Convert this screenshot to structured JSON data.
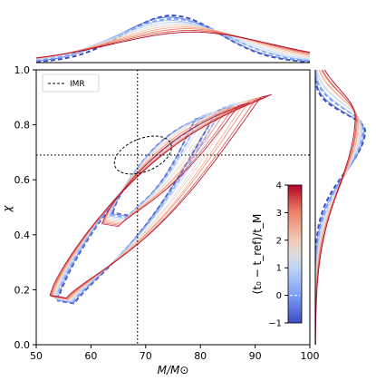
{
  "chart_data": {
    "type": "contour",
    "xlabel": "M/M⊙",
    "ylabel": "χ",
    "xlim": [
      50,
      100
    ],
    "ylim": [
      0.0,
      1.0
    ],
    "x_ticks": [
      "50",
      "60",
      "70",
      "80",
      "90",
      "100"
    ],
    "y_ticks": [
      "0.0",
      "0.2",
      "0.4",
      "0.6",
      "0.8",
      "1.0"
    ],
    "reference_lines": {
      "x": 68.5,
      "y": 0.69,
      "style": "dotted"
    },
    "legend": {
      "label": "IMR",
      "style": "dashed",
      "placement": "top-left"
    },
    "colorbar": {
      "label": "(t₀ − t_ref)/t_M",
      "min": -1,
      "max": 4,
      "ticks": [
        "−1",
        "0",
        "1",
        "2",
        "3",
        "4"
      ],
      "colormap": "coolwarm",
      "zero_marker": true
    },
    "imr_contour": {
      "center": [
        69.5,
        0.69
      ],
      "x_range": [
        64,
        75
      ],
      "y_range": [
        0.63,
        0.75
      ]
    },
    "series": [
      {
        "t": -1.0,
        "color": "#3b4cc0",
        "peak_M": 77,
        "peak_chi": 0.86,
        "style": "dashed"
      },
      {
        "t": -0.5,
        "color": "#5573d8",
        "peak_M": 77,
        "peak_chi": 0.86
      },
      {
        "t": 0.0,
        "color": "#7b9ff9",
        "peak_M": 78,
        "peak_chi": 0.87,
        "style": "dashed"
      },
      {
        "t": 0.5,
        "color": "#9ebeff",
        "peak_M": 78,
        "peak_chi": 0.87
      },
      {
        "t": 1.0,
        "color": "#c0d4f5",
        "peak_M": 79,
        "peak_chi": 0.88
      },
      {
        "t": 1.5,
        "color": "#dddcdc",
        "peak_M": 80,
        "peak_chi": 0.88
      },
      {
        "t": 2.0,
        "color": "#f2cbb7",
        "peak_M": 81,
        "peak_chi": 0.89
      },
      {
        "t": 2.5,
        "color": "#f7a889",
        "peak_M": 82,
        "peak_chi": 0.89
      },
      {
        "t": 3.0,
        "color": "#ee8468",
        "peak_M": 83,
        "peak_chi": 0.9
      },
      {
        "t": 3.5,
        "color": "#d95847",
        "peak_M": 84,
        "peak_chi": 0.9
      },
      {
        "t": 4.0,
        "color": "#b40426",
        "peak_M": 85,
        "peak_chi": 0.91
      }
    ]
  }
}
